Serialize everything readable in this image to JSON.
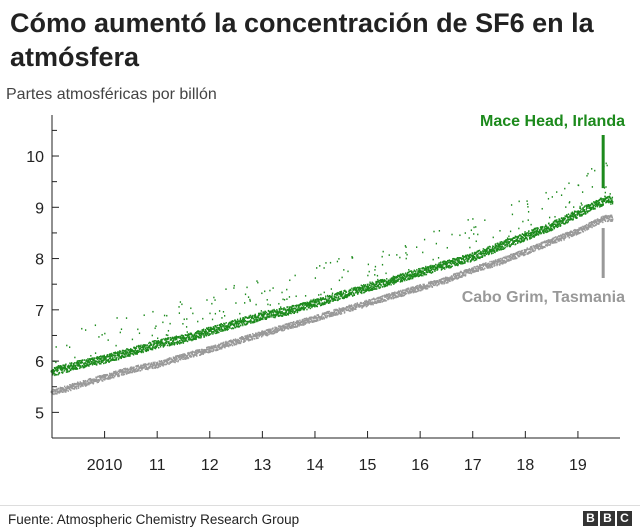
{
  "header": {
    "title": "Cómo aumentó la concentración de SF6 en la atmósfera"
  },
  "footer": {
    "source": "Fuente: Atmospheric Chemistry Research Group",
    "logo_letters": [
      "B",
      "B",
      "C"
    ]
  },
  "colors": {
    "mace_head": "#1c8a1c",
    "cabo_grim": "#999999",
    "axis": "#222222",
    "text": "#222222"
  },
  "chart_data": {
    "type": "scatter",
    "title": "Cómo aumentó la concentración de SF6 en la atmósfera",
    "ylabel": "Partes atmosféricas por billón",
    "xlabel": "",
    "xlim": [
      2009.0,
      2019.8
    ],
    "ylim": [
      4.5,
      10.8
    ],
    "x_ticks": [
      2010,
      2011,
      2012,
      2013,
      2014,
      2015,
      2016,
      2017,
      2018,
      2019
    ],
    "x_tick_labels": [
      "2010",
      "11",
      "12",
      "13",
      "14",
      "15",
      "16",
      "17",
      "18",
      "19"
    ],
    "y_ticks": [
      5,
      6,
      7,
      8,
      9,
      10
    ],
    "y_tick_labels": [
      "5",
      "6",
      "7",
      "8",
      "9",
      "10"
    ],
    "grid": false,
    "series": [
      {
        "name": "Mace Head, Irlanda",
        "color": "#1c8a1c",
        "x": [
          2009.0,
          2009.5,
          2010.0,
          2010.5,
          2011.0,
          2011.5,
          2012.0,
          2012.5,
          2013.0,
          2013.5,
          2014.0,
          2014.5,
          2015.0,
          2015.5,
          2016.0,
          2016.5,
          2017.0,
          2017.5,
          2018.0,
          2018.5,
          2019.0,
          2019.5
        ],
        "y": [
          5.8,
          5.95,
          6.05,
          6.2,
          6.35,
          6.45,
          6.6,
          6.75,
          6.9,
          7.0,
          7.15,
          7.3,
          7.45,
          7.6,
          7.75,
          7.9,
          8.05,
          8.25,
          8.45,
          8.65,
          8.9,
          9.15
        ]
      },
      {
        "name": "Cabo Grim, Tasmania",
        "color": "#999999",
        "x": [
          2009.0,
          2009.5,
          2010.0,
          2010.5,
          2011.0,
          2011.5,
          2012.0,
          2012.5,
          2013.0,
          2013.5,
          2014.0,
          2014.5,
          2015.0,
          2015.5,
          2016.0,
          2016.5,
          2017.0,
          2017.5,
          2018.0,
          2018.5,
          2019.0,
          2019.5
        ],
        "y": [
          5.4,
          5.55,
          5.7,
          5.85,
          5.95,
          6.1,
          6.25,
          6.4,
          6.55,
          6.7,
          6.85,
          7.0,
          7.15,
          7.3,
          7.45,
          7.6,
          7.8,
          7.95,
          8.15,
          8.35,
          8.55,
          8.8
        ]
      }
    ]
  }
}
